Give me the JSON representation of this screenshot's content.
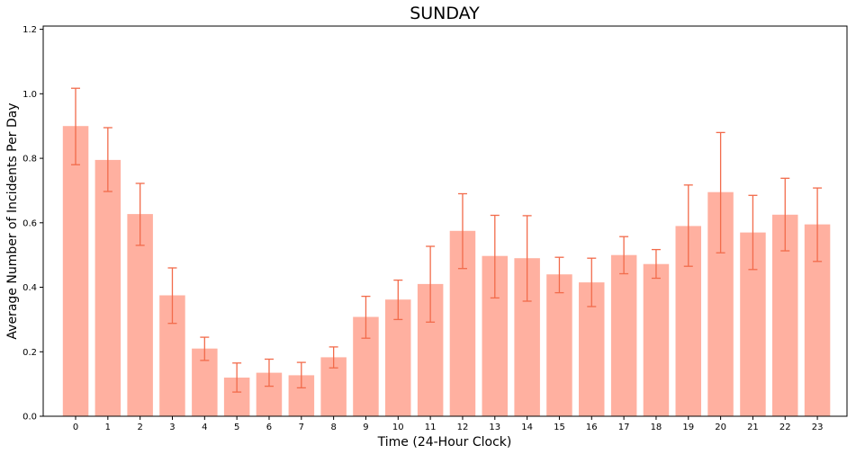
{
  "chart_data": {
    "type": "bar",
    "title": "SUNDAY",
    "xlabel": "Time (24-Hour Clock)",
    "ylabel": "Average Number of Incidents Per Day",
    "categories": [
      "0",
      "1",
      "2",
      "3",
      "4",
      "5",
      "6",
      "7",
      "8",
      "9",
      "10",
      "11",
      "12",
      "13",
      "14",
      "15",
      "16",
      "17",
      "18",
      "19",
      "20",
      "21",
      "22",
      "23"
    ],
    "values": [
      0.9,
      0.795,
      0.627,
      0.375,
      0.21,
      0.12,
      0.135,
      0.127,
      0.183,
      0.308,
      0.362,
      0.41,
      0.575,
      0.497,
      0.49,
      0.44,
      0.415,
      0.5,
      0.472,
      0.59,
      0.695,
      0.57,
      0.625,
      0.595
    ],
    "error_low": [
      0.78,
      0.697,
      0.53,
      0.288,
      0.173,
      0.075,
      0.093,
      0.088,
      0.15,
      0.242,
      0.3,
      0.292,
      0.458,
      0.367,
      0.357,
      0.383,
      0.34,
      0.442,
      0.428,
      0.465,
      0.507,
      0.455,
      0.513,
      0.48
    ],
    "error_high": [
      1.017,
      0.895,
      0.722,
      0.46,
      0.245,
      0.165,
      0.177,
      0.167,
      0.215,
      0.372,
      0.422,
      0.527,
      0.69,
      0.623,
      0.622,
      0.493,
      0.49,
      0.557,
      0.517,
      0.717,
      0.88,
      0.685,
      0.738,
      0.708
    ],
    "yticks": [
      "0.0",
      "0.2",
      "0.4",
      "0.6",
      "0.8",
      "1.0",
      "1.2"
    ],
    "ylim": [
      0,
      1.21
    ],
    "grid": false,
    "colors": {
      "bar": "#ffb0a0",
      "error": "#f26b4b",
      "axis": "#000000"
    }
  }
}
